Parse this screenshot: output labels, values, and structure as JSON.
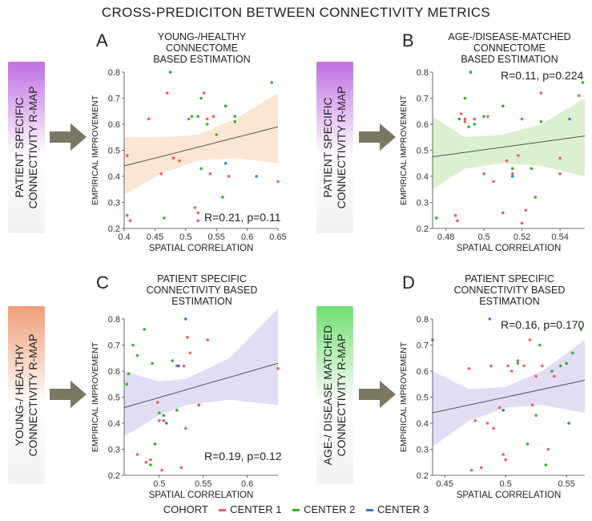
{
  "figure_title": "CROSS-PREDICITON BETWEEN CONNECTIVITY METRICS",
  "colors": {
    "center1": "#f25c5c",
    "center2": "#2fb52f",
    "center3": "#2a7fdc",
    "arrow": "#7a7862",
    "trend_line": "#555555"
  },
  "row_labels": [
    {
      "lines": [
        "PATIENT SPECIFIC",
        "CONNECTIVITY R-MAP"
      ],
      "gradient_top": "#c06fe3"
    },
    {
      "lines": [
        "PATIENT SPECIFIC",
        "CONNECTIVITY R-MAP"
      ],
      "gradient_top": "#c06fe3"
    },
    {
      "lines": [
        "YOUNG-/ HEALTHY",
        "CONNECTIVITY R-MAP"
      ],
      "gradient_top": "#ef9e78"
    },
    {
      "lines": [
        "AGE-/ DISEASE MATCHED",
        "CONNECTIVITY R-MAP"
      ],
      "gradient_top": "#6ee06e"
    }
  ],
  "legend": {
    "title": "COHORT",
    "items": [
      {
        "label": "CENTER 1",
        "color": "#f25c5c"
      },
      {
        "label": "CENTER 2",
        "color": "#2fb52f"
      },
      {
        "label": "CENTER 3",
        "color": "#2a7fdc"
      }
    ]
  },
  "chart_data": [
    {
      "type": "scatter",
      "letter": "A",
      "title": [
        "YOUNG-/HEALTHY",
        "CONNECTOME",
        "BASED ESTIMATION"
      ],
      "xlabel": "SPATIAL CORRELATION",
      "ylabel": "EMPIRICAL IMPROVEMENT",
      "xlim": [
        0.4,
        0.65
      ],
      "ylim": [
        0.2,
        0.8
      ],
      "xticks": [
        0.4,
        0.45,
        0.5,
        0.55,
        0.6,
        0.65
      ],
      "xtick_labels": [
        "0.4",
        "0.45",
        "0.5",
        "0.55",
        "0.6",
        "0.65"
      ],
      "yticks": [
        0.2,
        0.3,
        0.4,
        0.5,
        0.6,
        0.7,
        0.8
      ],
      "ytick_labels": [
        "0.2",
        "0.3",
        "0.4",
        "0.5",
        "0.6",
        "0.7",
        "0.8"
      ],
      "annotation": "R=0.21, p=0.11",
      "band_color": "#fbe6d4",
      "fit": {
        "x": [
          0.4,
          0.65
        ],
        "y": [
          0.44,
          0.59
        ]
      },
      "band": {
        "x": [
          0.4,
          0.46,
          0.52,
          0.58,
          0.65
        ],
        "lower": [
          0.33,
          0.41,
          0.46,
          0.47,
          0.45
        ],
        "upper": [
          0.55,
          0.55,
          0.56,
          0.62,
          0.72
        ]
      },
      "series": [
        {
          "name": "CENTER 1",
          "points": [
            [
              0.405,
              0.48
            ],
            [
              0.405,
              0.25
            ],
            [
              0.41,
              0.23
            ],
            [
              0.44,
              0.62
            ],
            [
              0.46,
              0.41
            ],
            [
              0.47,
              0.72
            ],
            [
              0.48,
              0.47
            ],
            [
              0.49,
              0.46
            ],
            [
              0.505,
              0.62
            ],
            [
              0.515,
              0.28
            ],
            [
              0.52,
              0.26
            ],
            [
              0.52,
              0.23
            ],
            [
              0.53,
              0.72
            ],
            [
              0.535,
              0.62
            ],
            [
              0.54,
              0.41
            ],
            [
              0.545,
              0.63
            ],
            [
              0.57,
              0.4
            ],
            [
              0.65,
              0.38
            ]
          ]
        },
        {
          "name": "CENTER 2",
          "points": [
            [
              0.465,
              0.24
            ],
            [
              0.51,
              0.63
            ],
            [
              0.52,
              0.63
            ],
            [
              0.525,
              0.7
            ],
            [
              0.525,
              0.43
            ],
            [
              0.535,
              0.6
            ],
            [
              0.55,
              0.56
            ],
            [
              0.56,
              0.32
            ],
            [
              0.565,
              0.67
            ],
            [
              0.58,
              0.63
            ],
            [
              0.58,
              0.61
            ],
            [
              0.64,
              0.76
            ]
          ]
        },
        {
          "name": "CENTER 3",
          "points": [
            [
              0.475,
              0.8
            ],
            [
              0.565,
              0.45
            ],
            [
              0.615,
              0.4
            ]
          ]
        }
      ]
    },
    {
      "type": "scatter",
      "letter": "B",
      "title": [
        "AGE-/DISEASE-MATCHED",
        "CONNECTOME",
        "BASED ESTIMATION"
      ],
      "xlabel": "SPATIAL CORRELATION",
      "ylabel": "EMPIRICAL IMPROVEMENT",
      "xlim": [
        0.473,
        0.553
      ],
      "ylim": [
        0.2,
        0.8
      ],
      "xticks": [
        0.48,
        0.5,
        0.52,
        0.54
      ],
      "xtick_labels": [
        "0.48",
        "0.5",
        "0.52",
        "0.54"
      ],
      "yticks": [
        0.2,
        0.3,
        0.4,
        0.5,
        0.6,
        0.7,
        0.8
      ],
      "ytick_labels": [
        "0.2",
        "0.3",
        "0.4",
        "0.5",
        "0.6",
        "0.7",
        "0.8"
      ],
      "annotation": "R=0.11, p=0.224",
      "band_color": "#dbf0d0",
      "fit": {
        "x": [
          0.473,
          0.553
        ],
        "y": [
          0.475,
          0.555
        ]
      },
      "band": {
        "x": [
          0.473,
          0.49,
          0.51,
          0.53,
          0.553
        ],
        "lower": [
          0.35,
          0.43,
          0.45,
          0.44,
          0.4
        ],
        "upper": [
          0.63,
          0.55,
          0.56,
          0.6,
          0.7
        ]
      },
      "series": [
        {
          "name": "CENTER 1",
          "points": [
            [
              0.485,
              0.25
            ],
            [
              0.486,
              0.23
            ],
            [
              0.488,
              0.64
            ],
            [
              0.49,
              0.62
            ],
            [
              0.49,
              0.61
            ],
            [
              0.495,
              0.62
            ],
            [
              0.5,
              0.41
            ],
            [
              0.502,
              0.63
            ],
            [
              0.505,
              0.38
            ],
            [
              0.51,
              0.26
            ],
            [
              0.512,
              0.46
            ],
            [
              0.515,
              0.41
            ],
            [
              0.518,
              0.48
            ],
            [
              0.52,
              0.22
            ],
            [
              0.522,
              0.27
            ],
            [
              0.53,
              0.72
            ],
            [
              0.54,
              0.47
            ],
            [
              0.54,
              0.41
            ],
            [
              0.55,
              0.71
            ]
          ]
        },
        {
          "name": "CENTER 2",
          "points": [
            [
              0.475,
              0.24
            ],
            [
              0.487,
              0.62
            ],
            [
              0.49,
              0.7
            ],
            [
              0.492,
              0.59
            ],
            [
              0.495,
              0.6
            ],
            [
              0.5,
              0.63
            ],
            [
              0.51,
              0.67
            ],
            [
              0.515,
              0.43
            ],
            [
              0.52,
              0.62
            ],
            [
              0.525,
              0.43
            ],
            [
              0.527,
              0.32
            ],
            [
              0.53,
              0.61
            ],
            [
              0.552,
              0.76
            ]
          ]
        },
        {
          "name": "CENTER 3",
          "points": [
            [
              0.493,
              0.8
            ],
            [
              0.515,
              0.4
            ],
            [
              0.545,
              0.62
            ]
          ]
        }
      ]
    },
    {
      "type": "scatter",
      "letter": "C",
      "title": [
        "PATIENT SPECIFIC",
        "CONNECTIVITY BASED",
        "ESTIMATION"
      ],
      "xlabel": "SPATIAL CORRELATION",
      "ylabel": "EMPIRICAL IMPROVEMENT",
      "xlim": [
        0.46,
        0.635
      ],
      "ylim": [
        0.2,
        0.8
      ],
      "xticks": [
        0.5,
        0.55,
        0.6
      ],
      "xtick_labels": [
        "0.5",
        "0.55",
        "0.6"
      ],
      "yticks": [
        0.2,
        0.3,
        0.4,
        0.5,
        0.6,
        0.7,
        0.8
      ],
      "ytick_labels": [
        "0.2",
        "0.3",
        "0.4",
        "0.5",
        "0.6",
        "0.7",
        "0.8"
      ],
      "annotation": "R=0.19, p=0.12",
      "band_color": "#e2ddf2",
      "fit": {
        "x": [
          0.46,
          0.635
        ],
        "y": [
          0.46,
          0.63
        ]
      },
      "band": {
        "x": [
          0.46,
          0.5,
          0.53,
          0.58,
          0.635
        ],
        "lower": [
          0.35,
          0.43,
          0.47,
          0.49,
          0.47
        ],
        "upper": [
          0.6,
          0.56,
          0.57,
          0.65,
          0.84
        ]
      },
      "series": [
        {
          "name": "CENTER 1",
          "points": [
            [
              0.475,
              0.28
            ],
            [
              0.485,
              0.25
            ],
            [
              0.49,
              0.26
            ],
            [
              0.498,
              0.48
            ],
            [
              0.5,
              0.41
            ],
            [
              0.503,
              0.22
            ],
            [
              0.505,
              0.41
            ],
            [
              0.52,
              0.62
            ],
            [
              0.525,
              0.23
            ],
            [
              0.528,
              0.62
            ],
            [
              0.53,
              0.38
            ],
            [
              0.532,
              0.73
            ],
            [
              0.535,
              0.67
            ],
            [
              0.545,
              0.47
            ],
            [
              0.555,
              0.72
            ],
            [
              0.635,
              0.61
            ]
          ]
        },
        {
          "name": "CENTER 2",
          "points": [
            [
              0.463,
              0.55
            ],
            [
              0.465,
              0.59
            ],
            [
              0.47,
              0.7
            ],
            [
              0.475,
              0.66
            ],
            [
              0.483,
              0.76
            ],
            [
              0.49,
              0.24
            ],
            [
              0.492,
              0.63
            ],
            [
              0.495,
              0.32
            ],
            [
              0.5,
              0.44
            ],
            [
              0.505,
              0.43
            ],
            [
              0.515,
              0.64
            ],
            [
              0.52,
              0.45
            ]
          ]
        },
        {
          "name": "CENTER 3",
          "points": [
            [
              0.508,
              0.4
            ],
            [
              0.522,
              0.62
            ],
            [
              0.53,
              0.8
            ]
          ]
        }
      ]
    },
    {
      "type": "scatter",
      "letter": "D",
      "title": [
        "PATIENT SPECIFIC",
        "CONNECTIVITY BASED",
        "ESTIMATION"
      ],
      "xlabel": "SPATIAL CORRELATION",
      "ylabel": "EMPIRICAL IMPROVEMENT",
      "xlim": [
        0.44,
        0.565
      ],
      "ylim": [
        0.2,
        0.8
      ],
      "xticks": [
        0.45,
        0.5,
        0.55
      ],
      "xtick_labels": [
        "0.45",
        "0.5",
        "0.55"
      ],
      "yticks": [
        0.2,
        0.3,
        0.4,
        0.5,
        0.6,
        0.7,
        0.8
      ],
      "ytick_labels": [
        "0.2",
        "0.3",
        "0.4",
        "0.5",
        "0.6",
        "0.7",
        "0.8"
      ],
      "annotation": "R=0.16, p=0.170",
      "band_color": "#e2ddf2",
      "fit": {
        "x": [
          0.44,
          0.565
        ],
        "y": [
          0.44,
          0.565
        ]
      },
      "band": {
        "x": [
          0.44,
          0.47,
          0.5,
          0.53,
          0.565
        ],
        "lower": [
          0.31,
          0.41,
          0.46,
          0.47,
          0.44
        ],
        "upper": [
          0.6,
          0.53,
          0.54,
          0.6,
          0.72
        ]
      },
      "series": [
        {
          "name": "CENTER 1",
          "points": [
            [
              0.44,
              0.72
            ],
            [
              0.47,
              0.61
            ],
            [
              0.472,
              0.22
            ],
            [
              0.475,
              0.41
            ],
            [
              0.48,
              0.23
            ],
            [
              0.485,
              0.4
            ],
            [
              0.488,
              0.62
            ],
            [
              0.49,
              0.38
            ],
            [
              0.495,
              0.46
            ],
            [
              0.498,
              0.28
            ],
            [
              0.5,
              0.26
            ],
            [
              0.502,
              0.62
            ],
            [
              0.505,
              0.6
            ],
            [
              0.51,
              0.64
            ],
            [
              0.515,
              0.62
            ],
            [
              0.52,
              0.72
            ],
            [
              0.522,
              0.47
            ],
            [
              0.525,
              0.58
            ],
            [
              0.53,
              0.62
            ],
            [
              0.535,
              0.3
            ],
            [
              0.54,
              0.58
            ]
          ]
        },
        {
          "name": "CENTER 2",
          "points": [
            [
              0.51,
              0.63
            ],
            [
              0.518,
              0.32
            ],
            [
              0.525,
              0.43
            ],
            [
              0.528,
              0.7
            ],
            [
              0.533,
              0.24
            ],
            [
              0.538,
              0.6
            ],
            [
              0.545,
              0.62
            ],
            [
              0.55,
              0.63
            ],
            [
              0.555,
              0.67
            ],
            [
              0.562,
              0.76
            ]
          ]
        },
        {
          "name": "CENTER 3",
          "points": [
            [
              0.487,
              0.8
            ],
            [
              0.498,
              0.45
            ],
            [
              0.552,
              0.4
            ]
          ]
        }
      ]
    }
  ]
}
